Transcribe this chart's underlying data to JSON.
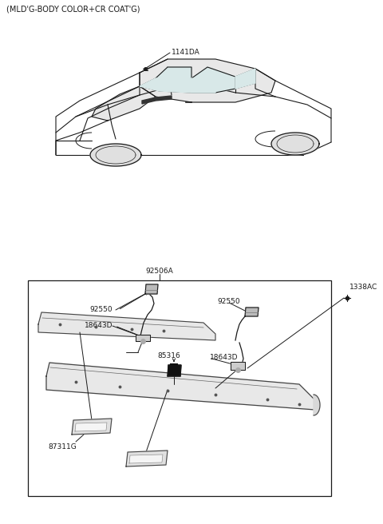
{
  "bg": "#ffffff",
  "lc": "#1a1a1a",
  "title": "(MLD'G-BODY COLOR+CR COAT'G)",
  "labels": {
    "1141DA": "1141DA",
    "92506A": "92506A",
    "1338AC": "1338AC",
    "92550_L": "92550",
    "18643D_L": "18643D",
    "85316": "85316",
    "92550_R": "92550",
    "18643D_R": "18643D",
    "87311G": "87311G"
  },
  "fig_w": 4.8,
  "fig_h": 6.56,
  "dpi": 100
}
